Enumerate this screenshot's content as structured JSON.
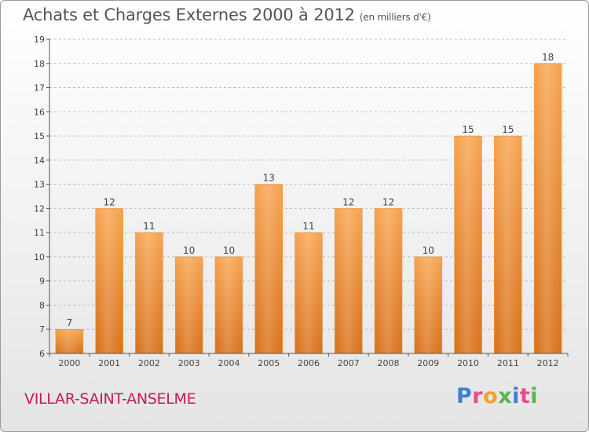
{
  "title": "Achats et Charges Externes 2000 à 2012",
  "subtitle": "(en milliers d'€)",
  "place": "VILLAR-SAINT-ANSELME",
  "brand": {
    "letters": [
      "P",
      "r",
      "o",
      "x",
      "i",
      "t",
      "i"
    ],
    "colors": [
      "#3a7fd0",
      "#e64a8a",
      "#f2a22d",
      "#54b848",
      "#3a7fd0",
      "#e64a8a",
      "#54b848"
    ]
  },
  "colors": {
    "bar_top": "#f7a552",
    "bar_bottom": "#d9731e",
    "axis": "#555555",
    "grid": "#bbbbbb"
  },
  "chart_data": {
    "type": "bar",
    "title": "Achats et Charges Externes 2000 à 2012",
    "subtitle": "(en milliers d'€)",
    "categories": [
      "2000",
      "2001",
      "2002",
      "2003",
      "2004",
      "2005",
      "2006",
      "2007",
      "2008",
      "2009",
      "2010",
      "2011",
      "2012"
    ],
    "values": [
      7,
      12,
      11,
      10,
      10,
      13,
      11,
      12,
      12,
      10,
      15,
      15,
      18
    ],
    "ylim": [
      6,
      19
    ],
    "yticks": [
      6,
      7,
      8,
      9,
      10,
      11,
      12,
      13,
      14,
      15,
      16,
      17,
      18,
      19
    ],
    "grid": true,
    "legend": "none"
  }
}
